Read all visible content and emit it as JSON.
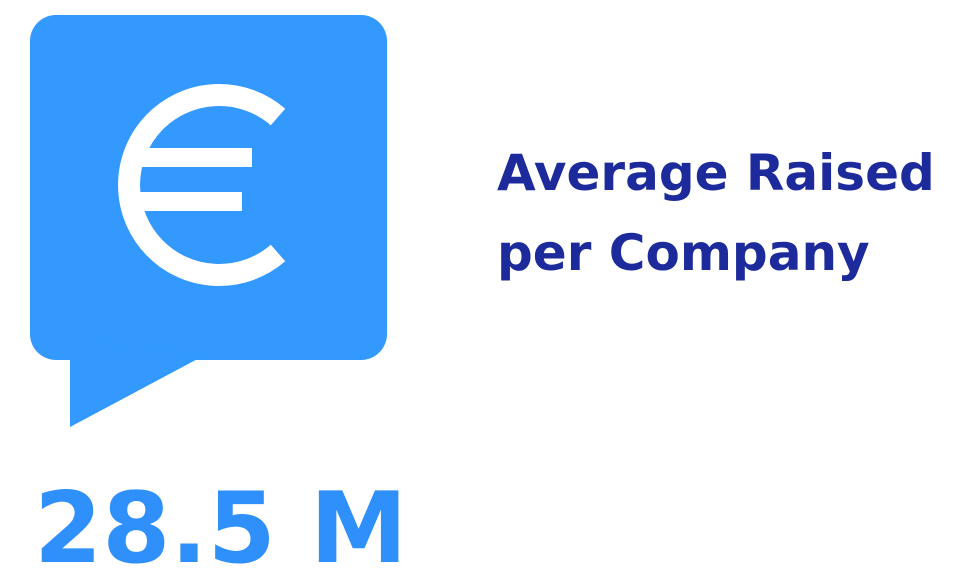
{
  "label": {
    "lines": [
      "Average Raised",
      "per Company"
    ]
  },
  "value": "28.5 M"
}
